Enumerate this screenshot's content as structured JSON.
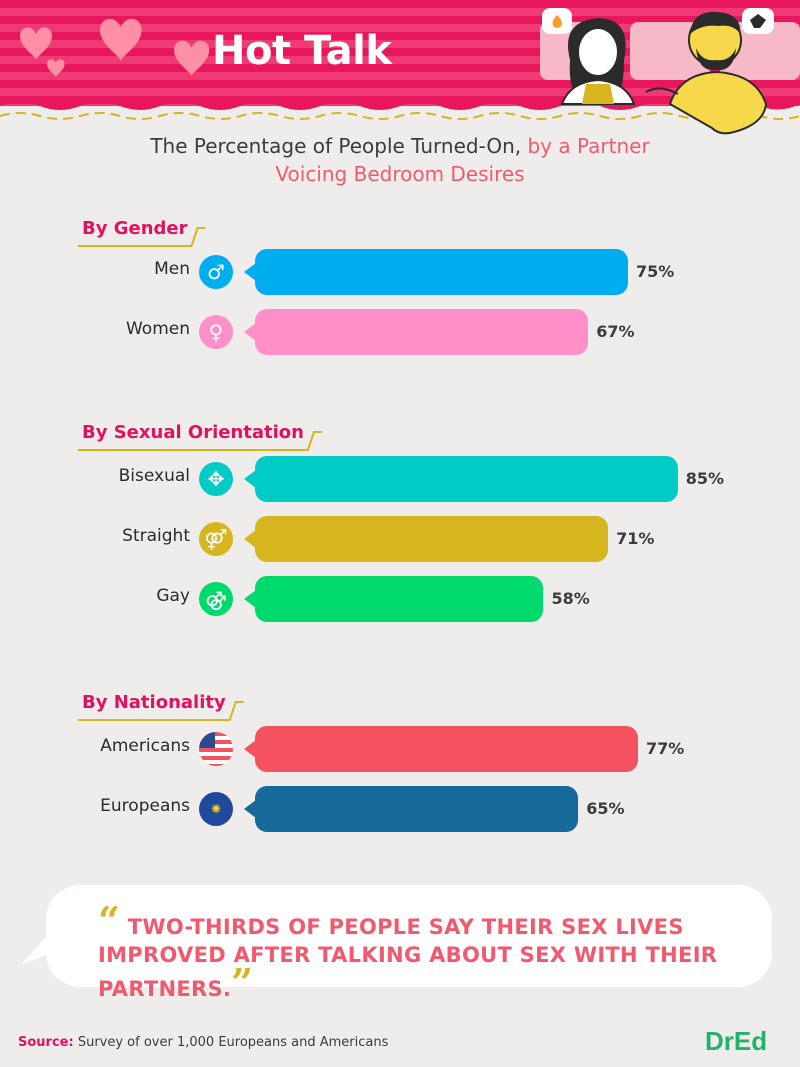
{
  "header": {
    "title": "Hot Talk"
  },
  "subtitle": {
    "line1_plain": "The Percentage of People Turned-On,",
    "line1_accent": "by a Partner",
    "line2_accent": "Voicing Bedroom Desires"
  },
  "chart_data": {
    "type": "bar",
    "orientation": "horizontal",
    "value_suffix": "%",
    "groups": [
      {
        "title": "By Gender",
        "rows": [
          {
            "label": "Men",
            "value": 75,
            "color": "#00aeef",
            "icon": "male-symbol-icon",
            "icon_color": "#00aeef"
          },
          {
            "label": "Women",
            "value": 67,
            "color": "#ff8fc8",
            "icon": "female-symbol-icon",
            "icon_color": "#ff8fc8"
          }
        ]
      },
      {
        "title": "By Sexual Orientation",
        "rows": [
          {
            "label": "Bisexual",
            "value": 85,
            "color": "#00cbc4",
            "icon": "bisexual-symbol-icon",
            "icon_color": "#00cbc4"
          },
          {
            "label": "Straight",
            "value": 71,
            "color": "#d6b51e",
            "icon": "straight-symbol-icon",
            "icon_color": "#d6b51e"
          },
          {
            "label": "Gay",
            "value": 58,
            "color": "#00d96b",
            "icon": "gay-symbol-icon",
            "icon_color": "#00d96b"
          }
        ]
      },
      {
        "title": "By Nationality",
        "rows": [
          {
            "label": "Americans",
            "value": 77,
            "color": "#f4525f",
            "icon": "us-flag-icon",
            "icon_color": "#f4525f"
          },
          {
            "label": "Europeans",
            "value": 65,
            "color": "#156a99",
            "icon": "eu-flag-icon",
            "icon_color": "#1f4a9c"
          }
        ]
      }
    ]
  },
  "quote": {
    "text": "TWO-THIRDS OF PEOPLE SAY THEIR SEX LIVES IMPROVED AFTER TALKING ABOUT SEX WITH THEIR PARTNERS."
  },
  "footer": {
    "source_label": "Source:",
    "source_text": "Survey of over 1,000 Europeans and Americans",
    "logo": "DrEd"
  },
  "colors": {
    "header_pink": "#e8175d",
    "section_label": "#e0115f",
    "accent_coral": "#f05a6e",
    "quote_mark": "#d6b51e",
    "logo_green": "#23b26d"
  }
}
